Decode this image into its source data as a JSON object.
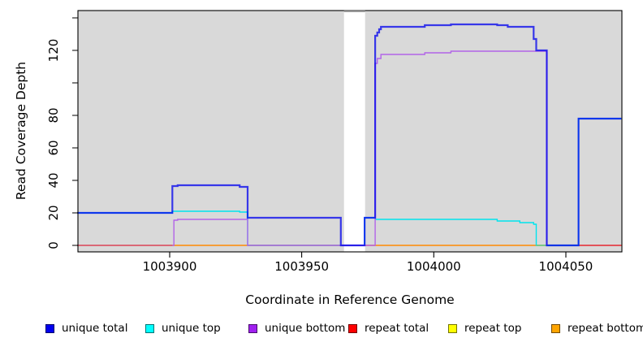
{
  "figure": {
    "background": "#FFFFFF",
    "panel_background": "#D9D9D9",
    "gap_band_color": "#FFFFFF",
    "gap_band_cap_color": "#8A8A8A",
    "box_color": "#000000"
  },
  "y_axis": {
    "label": "Read Coverage Depth",
    "ticks": [
      {
        "value": 0,
        "label": "0"
      },
      {
        "value": 20,
        "label": "20"
      },
      {
        "value": 40,
        "label": "40"
      },
      {
        "value": 60,
        "label": "60"
      },
      {
        "value": 80,
        "label": "80"
      },
      {
        "value": 100,
        "label": ""
      },
      {
        "value": 120,
        "label": "120"
      },
      {
        "value": 140,
        "label": ""
      }
    ]
  },
  "x_axis": {
    "label": "Coordinate in Reference Genome",
    "ticks": [
      {
        "value": 1003900,
        "label": "1003900"
      },
      {
        "value": 1003950,
        "label": "1003950"
      },
      {
        "value": 1004000,
        "label": "1004000"
      },
      {
        "value": 1004050,
        "label": "1004050"
      }
    ]
  },
  "legend": [
    {
      "label": "unique total",
      "color": "#0000EE"
    },
    {
      "label": "unique top",
      "color": "#00FFFF"
    },
    {
      "label": "unique bottom",
      "color": "#A020F0"
    },
    {
      "label": "repeat total",
      "color": "#FF0000"
    },
    {
      "label": "repeat top",
      "color": "#FFFF00"
    },
    {
      "label": "repeat bottom",
      "color": "#FFA500"
    }
  ],
  "chart_data": {
    "type": "line",
    "step": true,
    "title": "",
    "xlabel": "Coordinate in Reference Genome",
    "ylabel": "Read Coverage Depth",
    "x_range": [
      1003865,
      1004071
    ],
    "y_range": [
      0,
      143
    ],
    "x_ticks": [
      1003900,
      1003950,
      1004000,
      1004050
    ],
    "y_ticks_labeled": [
      0,
      20,
      40,
      60,
      80,
      120
    ],
    "y_ticks_unlabeled": [
      100,
      140
    ],
    "gap_region": [
      1003966,
      1003974
    ],
    "series": [
      {
        "name": "unique total",
        "color": "#0000EE",
        "extend": true,
        "points": [
          [
            1003865,
            20
          ],
          [
            1003901,
            36.5
          ],
          [
            1003903,
            37
          ],
          [
            1003926.5,
            36
          ],
          [
            1003929.5,
            17
          ],
          [
            1003964.8,
            0
          ],
          [
            1003973.8,
            17
          ],
          [
            1003977.8,
            129
          ],
          [
            1003978.6,
            131
          ],
          [
            1003979.3,
            133
          ],
          [
            1003980,
            134.5
          ],
          [
            1003996.6,
            135.5
          ],
          [
            1004006.5,
            136
          ],
          [
            1004024,
            135.5
          ],
          [
            1004028,
            134.5
          ],
          [
            1004037.8,
            127
          ],
          [
            1004038.8,
            120
          ],
          [
            1004042.8,
            0
          ],
          [
            1004054.8,
            78
          ]
        ]
      },
      {
        "name": "unique top",
        "color": "#00E4EE",
        "extend": true,
        "points": [
          [
            1003865,
            20
          ],
          [
            1003901,
            21
          ],
          [
            1003926.5,
            20.5
          ],
          [
            1003929.5,
            0
          ],
          [
            1003973.8,
            17
          ],
          [
            1003977.8,
            16
          ],
          [
            1004024,
            15
          ],
          [
            1004032.6,
            14
          ],
          [
            1004037.8,
            13
          ],
          [
            1004038.8,
            0
          ],
          [
            1004054.8,
            78
          ]
        ]
      },
      {
        "name": "unique bottom",
        "color": "#B264E8",
        "extend": false,
        "points": [
          [
            1003901,
            0
          ],
          [
            1003901.6,
            15.5
          ],
          [
            1003903,
            16
          ],
          [
            1003929.5,
            0
          ],
          [
            1003977.8,
            112
          ],
          [
            1003978.6,
            115
          ],
          [
            1003980,
            117.5
          ],
          [
            1003996.6,
            118.5
          ],
          [
            1004006.5,
            119.5
          ],
          [
            1004042.8,
            0
          ]
        ]
      },
      {
        "name": "repeat total",
        "color": "#EE0000",
        "extend": true,
        "points": [
          [
            1003865,
            0
          ]
        ]
      },
      {
        "name": "repeat top",
        "color": "#FFFF00",
        "extend": true,
        "points": [
          [
            1003865,
            0
          ]
        ]
      },
      {
        "name": "repeat bottom",
        "color": "#FF9912",
        "extend": true,
        "points": [
          [
            1003865,
            0
          ]
        ]
      }
    ],
    "baseline_overlap_segments": [
      {
        "x1": 1003865,
        "x2": 1003901,
        "color": "#D4547E",
        "layer": 1
      },
      {
        "x1": 1004054.8,
        "x2": 1004071,
        "color": "#E03858",
        "layer": 1
      },
      {
        "x1": 1003929.5,
        "x2": 1003964.8,
        "color": "#7CC87C",
        "layer": 2
      },
      {
        "x1": 1004038.8,
        "x2": 1004042.8,
        "color": "#7CC87C",
        "layer": 2
      }
    ]
  }
}
